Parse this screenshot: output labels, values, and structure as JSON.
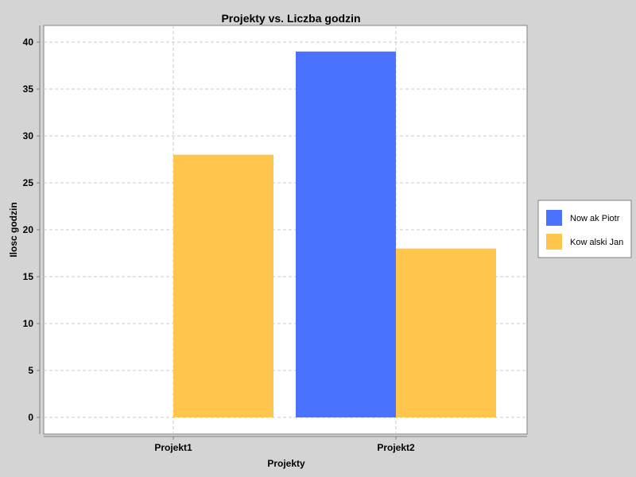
{
  "chart_data": {
    "type": "bar",
    "title": "Projekty vs. Liczba godzin",
    "xlabel": "Projekty",
    "ylabel": "Ilosc godzin",
    "categories": [
      "Projekt1",
      "Projekt2"
    ],
    "series": [
      {
        "name": "Now ak Piotr",
        "values": [
          0,
          39
        ],
        "color": "#4a72ff"
      },
      {
        "name": "Kow alski Jan",
        "values": [
          28,
          18
        ],
        "color": "#ffc54d"
      }
    ],
    "ylim": [
      0,
      40
    ],
    "yticks": [
      0,
      5,
      10,
      15,
      20,
      25,
      30,
      35,
      40
    ],
    "grid": true,
    "legend_position": "right"
  }
}
